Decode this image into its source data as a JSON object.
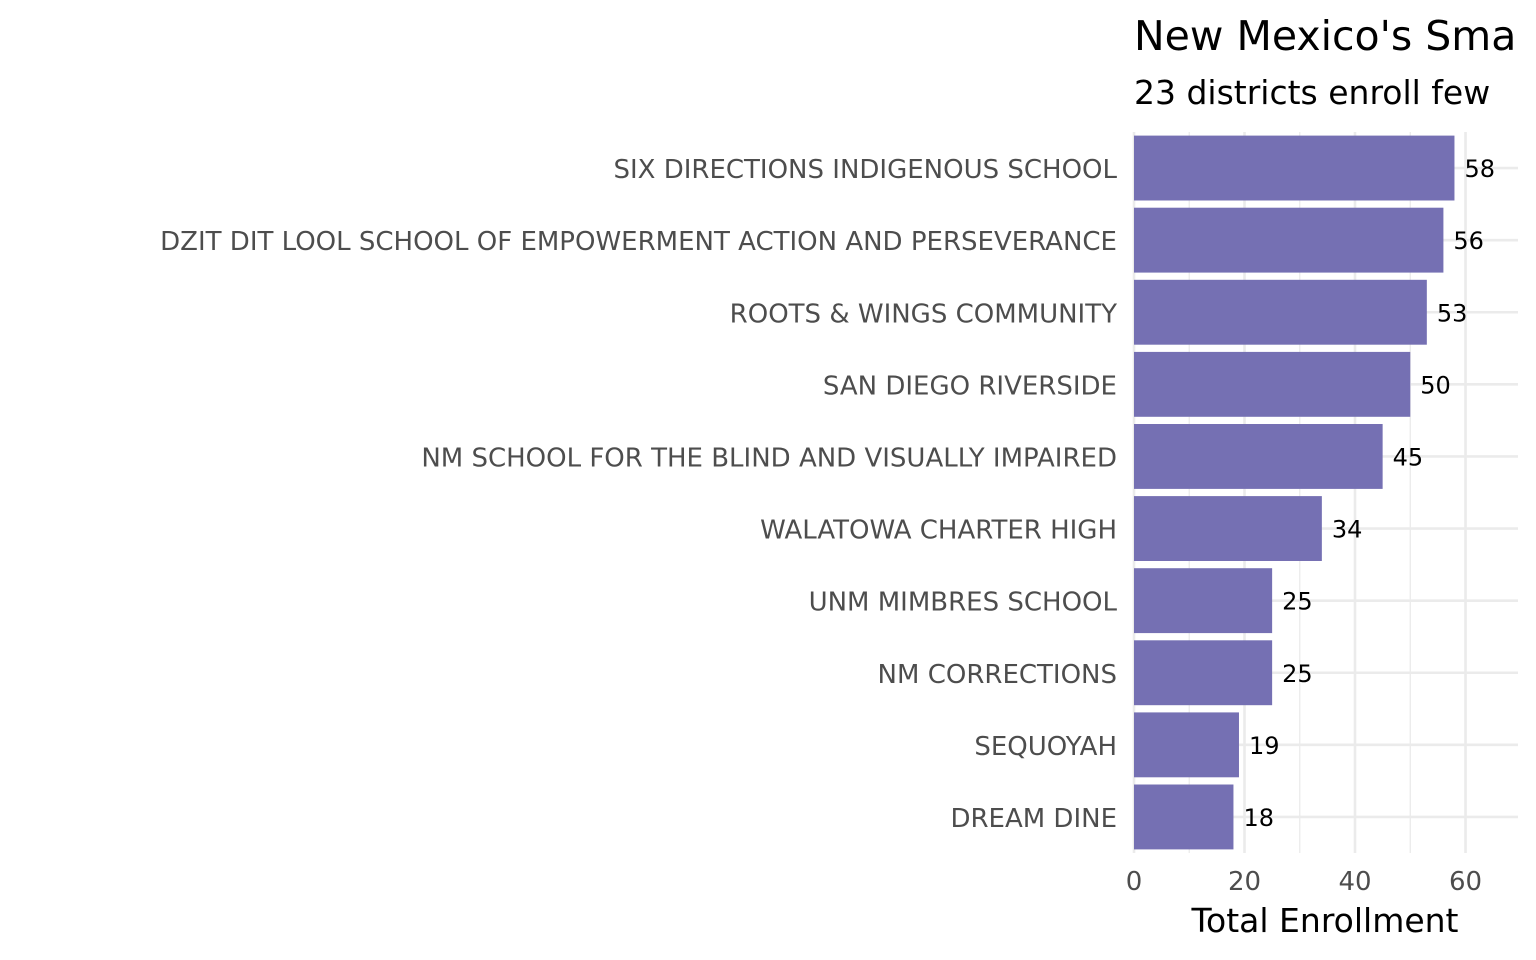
{
  "chart_data": {
    "type": "bar",
    "orientation": "horizontal",
    "title": "New Mexico's Sma",
    "subtitle": "23 districts enroll few",
    "xlabel": "Total Enrollment",
    "ylabel": "",
    "xlim": [
      0,
      69.5
    ],
    "xticks": [
      0,
      20,
      40,
      60
    ],
    "grid": true,
    "bar_color": "#7570b3",
    "categories": [
      "SIX DIRECTIONS INDIGENOUS SCHOOL",
      "DZIT DIT LOOL SCHOOL OF EMPOWERMENT ACTION AND PERSEVERANCE",
      "ROOTS & WINGS COMMUNITY",
      "SAN DIEGO RIVERSIDE",
      "NM SCHOOL FOR THE BLIND AND VISUALLY IMPAIRED",
      "WALATOWA CHARTER HIGH",
      "UNM MIMBRES SCHOOL",
      "NM CORRECTIONS",
      "SEQUOYAH",
      "DREAM DINE"
    ],
    "values": [
      58,
      56,
      53,
      50,
      45,
      34,
      25,
      25,
      19,
      18
    ]
  }
}
